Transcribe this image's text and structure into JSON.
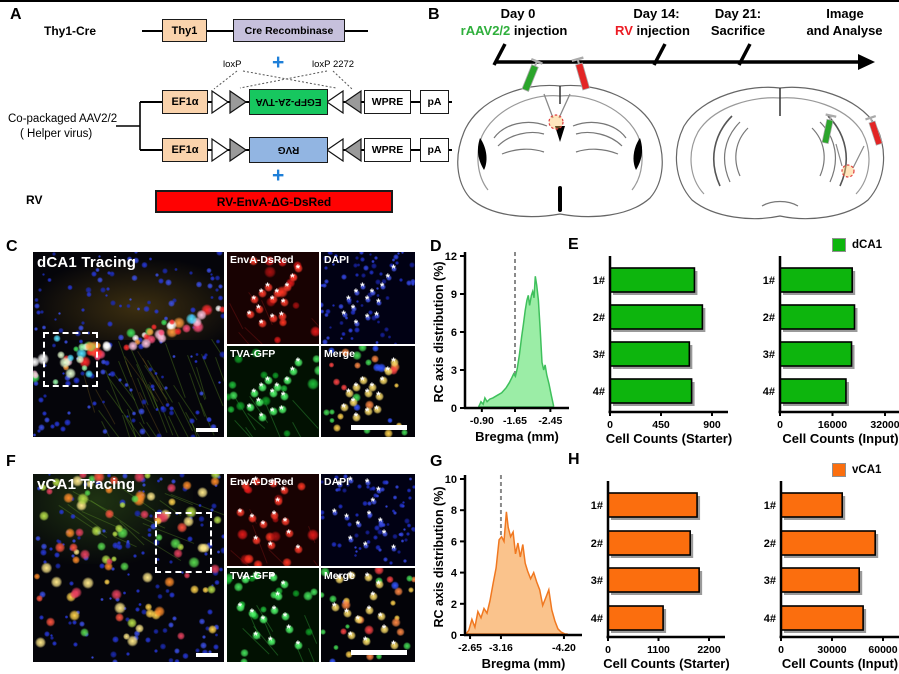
{
  "panel_letters": {
    "a": "A",
    "b": "B",
    "c": "C",
    "d": "D",
    "e": "E",
    "f": "F",
    "g": "G",
    "h": "H"
  },
  "panel_a": {
    "thy1cre_label": "Thy1-Cre",
    "thy1_box": "Thy1",
    "cre_box": "Cre Recombinase",
    "plus1": "+",
    "plus2": "+",
    "loxp_label": "loxP",
    "loxp2272_label": "loxP 2272",
    "helper_line1": "Co-packaged AAV2/2",
    "helper_line2": "( Helper virus)",
    "row1": {
      "promoter": "EF1α",
      "gene": "EGFP-2A-TVA",
      "wpre": "WPRE",
      "pa": "pA"
    },
    "row2": {
      "promoter": "EF1α",
      "gene": "RVG",
      "wpre": "WPRE",
      "pa": "pA"
    },
    "rv_label": "RV",
    "rv_box": "RV-EnvA-ΔG-DsRed",
    "colors": {
      "promoter": "#FAD3AC",
      "cre": "#C6C0DC",
      "gene1": "#17C75F",
      "gene2": "#92B5E2",
      "rv": "#FF0202",
      "plus": "#1E7FD8"
    }
  },
  "panel_b": {
    "events": [
      {
        "title": "Day 0",
        "sub_colored": "rAAV2/2",
        "sub_rest": " injection",
        "color": "#2FAF3C"
      },
      {
        "title": "Day 14:",
        "sub_colored": "RV",
        "sub_rest": " injection",
        "color": "#EC1C24"
      },
      {
        "title": "Day 21:",
        "sub_colored": "",
        "sub_rest": "Sacrifice",
        "color": "#000000"
      },
      {
        "title": "Image",
        "sub_colored": "",
        "sub_rest": "and Analyse",
        "color": "#000000"
      }
    ]
  },
  "panel_c": {
    "title": "dCA1 Tracing",
    "ch1": "EnvA-DsRed",
    "ch2": "DAPI",
    "ch3": "TVA-GFP",
    "ch4": "Merge"
  },
  "panel_f": {
    "title": "vCA1 Tracing",
    "ch1": "EnvA-DsRed",
    "ch2": "DAPI",
    "ch3": "TVA-GFP",
    "ch4": "Merge"
  },
  "legend_e": "dCA1",
  "legend_h": "vCA1",
  "chart_data": [
    {
      "id": "D",
      "type": "area",
      "xlabel": "Bregma (mm)",
      "ylabel": "RC axis distribution (%)",
      "xlim": [
        -0.7,
        -2.6
      ],
      "ylim": [
        0,
        12
      ],
      "xtick_vals": [
        -0.9,
        -1.65,
        -2.45
      ],
      "xtick_labels": [
        "-0.90",
        "-1.65",
        "-2.45"
      ],
      "yticks": [
        0,
        3,
        6,
        9,
        12
      ],
      "dashed_x": -1.65,
      "fill": "#9BEDA6",
      "stroke": "#3FC05C",
      "x": [
        -0.83,
        -0.88,
        -0.93,
        -0.97,
        -1.02,
        -1.08,
        -1.15,
        -1.25,
        -1.35,
        -1.45,
        -1.52,
        -1.58,
        -1.62,
        -1.66,
        -1.7,
        -1.75,
        -1.8,
        -1.84,
        -1.88,
        -1.92,
        -1.95,
        -1.98,
        -2.02,
        -2.05,
        -2.08,
        -2.11,
        -2.14,
        -2.18,
        -2.22,
        -2.26,
        -2.3,
        -2.33,
        -2.37,
        -2.42,
        -2.47,
        -2.52
      ],
      "y": [
        0.1,
        0.5,
        0.3,
        0.8,
        0.5,
        0.7,
        0.8,
        1.0,
        1.2,
        1.6,
        2.0,
        2.4,
        2.7,
        2.5,
        3.1,
        4.2,
        5.6,
        6.6,
        7.7,
        8.5,
        8.9,
        8.1,
        8.9,
        9.2,
        8.7,
        10.4,
        9.7,
        8.5,
        6.2,
        3.6,
        3.0,
        3.4,
        2.6,
        1.9,
        1.0,
        0.2
      ]
    },
    {
      "id": "E_starter",
      "type": "bar",
      "xlabel": "Cell Counts (Starter)",
      "categories": [
        "1#",
        "2#",
        "3#",
        "4#"
      ],
      "values": [
        745,
        815,
        700,
        720
      ],
      "xtick_vals": [
        0,
        450,
        900
      ],
      "xtick_labels": [
        "0",
        "450",
        "900"
      ],
      "xmax": 900,
      "color": "#0DB50D"
    },
    {
      "id": "E_input",
      "type": "bar",
      "xlabel": "Cell Counts (Input)",
      "categories": [
        "1#",
        "2#",
        "3#",
        "4#"
      ],
      "values": [
        22000,
        22700,
        21800,
        20100
      ],
      "xtick_vals": [
        0,
        16000,
        32000
      ],
      "xtick_labels": [
        "0",
        "16000",
        "32000"
      ],
      "xmax": 32000,
      "color": "#0DB50D"
    },
    {
      "id": "G",
      "type": "area",
      "xlabel": "Bregma (mm)",
      "ylabel": "RC axis distribution (%)",
      "xlim": [
        -2.55,
        -4.3
      ],
      "ylim": [
        0,
        10
      ],
      "xtick_vals": [
        -2.65,
        -3.16,
        -4.2
      ],
      "xtick_labels": [
        "-2.65",
        "-3.16",
        "-4.20"
      ],
      "yticks": [
        0,
        2,
        4,
        6,
        8,
        10
      ],
      "dashed_x": -3.16,
      "fill": "#FAC38C",
      "stroke": "#F07820",
      "x": [
        -2.58,
        -2.63,
        -2.68,
        -2.73,
        -2.78,
        -2.83,
        -2.88,
        -2.93,
        -2.98,
        -3.03,
        -3.08,
        -3.13,
        -3.17,
        -3.21,
        -3.25,
        -3.28,
        -3.32,
        -3.36,
        -3.4,
        -3.44,
        -3.48,
        -3.52,
        -3.56,
        -3.6,
        -3.65,
        -3.7,
        -3.75,
        -3.8,
        -3.85,
        -3.9,
        -3.95,
        -4.0,
        -4.05,
        -4.1,
        -4.15,
        -4.2,
        -4.25
      ],
      "y": [
        0.05,
        0.3,
        1.0,
        0.5,
        1.5,
        1.1,
        1.7,
        1.4,
        2.2,
        3.3,
        4.3,
        6.1,
        6.3,
        6.0,
        7.9,
        6.9,
        6.3,
        6.6,
        5.2,
        5.9,
        5.0,
        5.8,
        4.6,
        4.1,
        3.6,
        4.0,
        3.4,
        2.9,
        1.9,
        2.4,
        2.9,
        1.6,
        0.9,
        0.4,
        0.2,
        0.1,
        0.0
      ]
    },
    {
      "id": "H_starter",
      "type": "bar",
      "xlabel": "Cell Counts (Starter)",
      "categories": [
        "1#",
        "2#",
        "3#",
        "4#"
      ],
      "values": [
        1940,
        1790,
        1985,
        1200
      ],
      "xtick_vals": [
        0,
        1100,
        2200
      ],
      "xtick_labels": [
        "0",
        "1100",
        "2200"
      ],
      "xmax": 2200,
      "color": "#FB6E0E"
    },
    {
      "id": "H_input",
      "type": "bar",
      "xlabel": "Cell Counts (Input)",
      "categories": [
        "1#",
        "2#",
        "3#",
        "4#"
      ],
      "values": [
        36000,
        55400,
        46000,
        48300
      ],
      "xtick_vals": [
        0,
        30000,
        60000
      ],
      "xtick_labels": [
        "0",
        "30000",
        "60000"
      ],
      "xmax": 60000,
      "color": "#FB6E0E"
    }
  ]
}
